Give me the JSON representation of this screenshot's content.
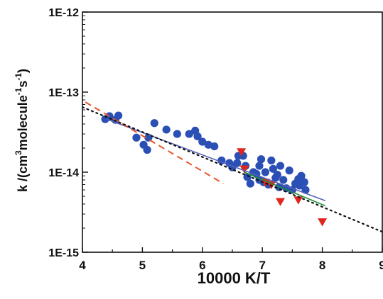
{
  "chart_data": {
    "type": "scatter",
    "xlabel": "10000 K/T",
    "ylabel_parts": {
      "k": "k /(cm",
      "k_sup": "3",
      "mol": "molecule",
      "mol_sup": "-1",
      "s": "s",
      "s_sup": "-1",
      "close": ")"
    },
    "x_scale": "linear",
    "y_scale": "log",
    "xlim": [
      4,
      9
    ],
    "ylim": [
      1e-15,
      1e-12
    ],
    "x_ticks": [
      4,
      5,
      6,
      7,
      8,
      9
    ],
    "x_tick_labels": [
      "4",
      "5",
      "6",
      "7",
      "8",
      "9"
    ],
    "y_ticks": [
      1e-15,
      1e-14,
      1e-13,
      1e-12
    ],
    "y_tick_labels": [
      "1E-15",
      "1E-14",
      "1E-13",
      "1E-12"
    ],
    "grid": false,
    "series": [
      {
        "marker": "circle",
        "color": "#2a4fb5",
        "points": [
          [
            4.38,
            4.6e-14
          ],
          [
            4.45,
            5e-14
          ],
          [
            4.55,
            4.5e-14
          ],
          [
            4.6,
            5.1e-14
          ],
          [
            4.9,
            2.7e-14
          ],
          [
            5.02,
            2.2e-14
          ],
          [
            5.08,
            1.9e-14
          ],
          [
            5.1,
            2.7e-14
          ],
          [
            5.2,
            4.1e-14
          ],
          [
            5.4,
            3.4e-14
          ],
          [
            5.58,
            3e-14
          ],
          [
            5.78,
            3e-14
          ],
          [
            5.88,
            3.3e-14
          ],
          [
            5.92,
            2.8e-14
          ],
          [
            6.0,
            2.4e-14
          ],
          [
            6.1,
            2.2e-14
          ],
          [
            6.2,
            2.1e-14
          ],
          [
            6.32,
            1.4e-14
          ],
          [
            6.45,
            1.3e-14
          ],
          [
            6.5,
            1.15e-14
          ],
          [
            6.58,
            1.3e-14
          ],
          [
            6.6,
            1.6e-14
          ],
          [
            6.68,
            1.6e-14
          ],
          [
            6.72,
            1.2e-14
          ],
          [
            6.75,
            8.7e-15
          ],
          [
            6.8,
            7.2e-15
          ],
          [
            6.85,
            1e-14
          ],
          [
            6.9,
            9.5e-15
          ],
          [
            6.95,
            8e-15
          ],
          [
            6.98,
            1.45e-14
          ],
          [
            7.02,
            7.5e-15
          ],
          [
            7.05,
            1e-14
          ],
          [
            7.1,
            7e-15
          ],
          [
            7.15,
            1.4e-14
          ],
          [
            7.18,
            1.1e-14
          ],
          [
            7.22,
            8.5e-15
          ],
          [
            7.28,
            6.5e-15
          ],
          [
            7.3,
            1.2e-14
          ],
          [
            7.35,
            8e-15
          ],
          [
            7.4,
            6.3e-15
          ],
          [
            7.45,
            1.05e-14
          ],
          [
            7.5,
            6e-15
          ],
          [
            7.55,
            7.2e-15
          ],
          [
            7.6,
            8.2e-15
          ],
          [
            7.62,
            6.8e-15
          ],
          [
            7.65,
            9e-15
          ],
          [
            7.7,
            7.5e-15
          ],
          [
            7.72,
            6e-15
          ],
          [
            6.95,
            1.2e-14
          ],
          [
            7.25,
            9.3e-15
          ]
        ]
      },
      {
        "marker": "triangle-down",
        "color": "#e0271f",
        "points": [
          [
            6.65,
            1.8e-14
          ],
          [
            6.7,
            1.1e-14
          ],
          [
            7.05,
            7.5e-15
          ],
          [
            7.15,
            7e-15
          ],
          [
            7.3,
            4.3e-15
          ],
          [
            7.6,
            4.5e-15
          ],
          [
            8.0,
            2.4e-15
          ]
        ]
      },
      {
        "line": "solid",
        "color": "#5560b8",
        "x": [
          4.4,
          8.05
        ],
        "y": [
          4.6e-14,
          4.4e-15
        ]
      },
      {
        "line": "dashed",
        "color": "#e8552a",
        "x": [
          4.05,
          6.35
        ],
        "y": [
          7.5e-14,
          7.2e-15
        ]
      },
      {
        "line": "dotted",
        "color": "#111111",
        "x": [
          4.0,
          9.0
        ],
        "y": [
          6.5e-14,
          1.8e-15
        ]
      },
      {
        "line": "solid",
        "color": "#1f8f3a",
        "x": [
          6.7,
          8.05
        ],
        "y": [
          1e-14,
          3.8e-15
        ]
      }
    ]
  }
}
